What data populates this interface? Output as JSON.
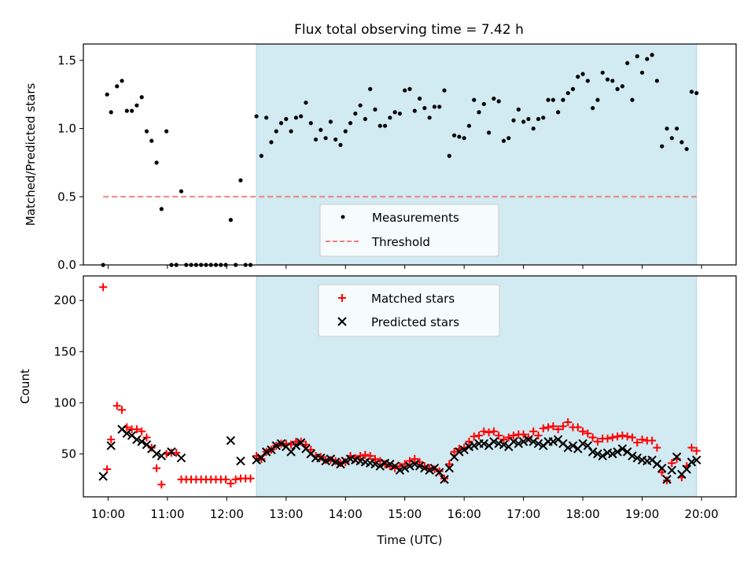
{
  "figure": {
    "title": "Flux total observing time = 7.42 h"
  },
  "chart_data": [
    {
      "type": "scatter",
      "panel": "top",
      "title": "Flux total observing time = 7.42 h",
      "xlabel": "",
      "ylabel": "Matched/Predicted stars",
      "x_unit": "time (UTC)",
      "xlim": [
        "09:35",
        "20:35"
      ],
      "ylim": [
        0,
        1.62
      ],
      "yticks": [
        0.0,
        0.5,
        1.0,
        1.5
      ],
      "ytick_labels": [
        "0.0",
        "0.5",
        "1.0",
        "1.5"
      ],
      "shaded_interval": {
        "start": "12:30",
        "end": "19:55",
        "color": "#add8e6"
      },
      "legend": {
        "placement": "lower center",
        "entries": [
          "Measurements",
          "Threshold"
        ]
      },
      "threshold": {
        "name": "Threshold",
        "y": 0.5,
        "x_start": "09:55",
        "x_end": "19:55",
        "color": "#f08080",
        "style": "dashed"
      },
      "series": [
        {
          "name": "Measurements",
          "marker": "dot",
          "color": "#000000",
          "x": [
            "09:55",
            "09:59",
            "10:03",
            "10:09",
            "10:14",
            "10:19",
            "10:24",
            "10:29",
            "10:34",
            "10:39",
            "10:44",
            "10:49",
            "10:54",
            "10:59",
            "11:04",
            "11:09",
            "11:14",
            "11:19",
            "11:24",
            "11:29",
            "11:34",
            "11:39",
            "11:44",
            "11:49",
            "11:54",
            "11:59",
            "12:04",
            "12:09",
            "12:14",
            "12:19",
            "12:24",
            "12:30",
            "12:35",
            "12:40",
            "12:45",
            "12:50",
            "12:55",
            "13:00",
            "13:05",
            "13:10",
            "13:15",
            "13:20",
            "13:25",
            "13:30",
            "13:35",
            "13:40",
            "13:45",
            "13:50",
            "13:55",
            "14:00",
            "14:05",
            "14:10",
            "14:15",
            "14:20",
            "14:25",
            "14:30",
            "14:35",
            "14:40",
            "14:45",
            "14:50",
            "14:55",
            "15:00",
            "15:05",
            "15:10",
            "15:15",
            "15:20",
            "15:25",
            "15:30",
            "15:35",
            "15:40",
            "15:45",
            "15:50",
            "15:55",
            "16:00",
            "16:05",
            "16:10",
            "16:15",
            "16:20",
            "16:25",
            "16:30",
            "16:35",
            "16:40",
            "16:45",
            "16:50",
            "16:55",
            "17:00",
            "17:05",
            "17:10",
            "17:15",
            "17:20",
            "17:25",
            "17:30",
            "17:35",
            "17:40",
            "17:45",
            "17:50",
            "17:55",
            "18:00",
            "18:05",
            "18:10",
            "18:15",
            "18:20",
            "18:25",
            "18:30",
            "18:35",
            "18:40",
            "18:45",
            "18:50",
            "18:55",
            "19:00",
            "19:05",
            "19:10",
            "19:15",
            "19:20",
            "19:25",
            "19:30",
            "19:35",
            "19:40",
            "19:45",
            "19:50",
            "19:55"
          ],
          "y": [
            0.0,
            1.25,
            1.12,
            1.31,
            1.35,
            1.13,
            1.13,
            1.17,
            1.23,
            0.98,
            0.91,
            0.75,
            0.41,
            0.98,
            0.0,
            0.0,
            0.54,
            0.0,
            0.0,
            0.0,
            0.0,
            0.0,
            0.0,
            0.0,
            0.0,
            0.0,
            0.33,
            0.0,
            0.62,
            0.0,
            0.0,
            1.09,
            0.8,
            1.08,
            0.9,
            0.98,
            1.04,
            1.07,
            0.98,
            1.08,
            1.09,
            1.19,
            1.04,
            0.92,
            0.99,
            0.93,
            1.05,
            0.92,
            0.88,
            0.98,
            1.04,
            1.11,
            1.17,
            1.07,
            1.29,
            1.14,
            1.02,
            1.02,
            1.08,
            1.12,
            1.11,
            1.28,
            1.29,
            1.13,
            1.22,
            1.15,
            1.08,
            1.16,
            1.16,
            1.28,
            0.8,
            0.95,
            0.94,
            0.93,
            1.02,
            1.21,
            1.12,
            1.18,
            0.97,
            1.22,
            1.2,
            0.91,
            0.93,
            1.06,
            1.14,
            1.05,
            1.07,
            1.0,
            1.07,
            1.08,
            1.21,
            1.21,
            1.12,
            1.21,
            1.26,
            1.29,
            1.38,
            1.4,
            1.35,
            1.15,
            1.21,
            1.41,
            1.36,
            1.35,
            1.29,
            1.31,
            1.48,
            1.21,
            1.53,
            1.41,
            1.51,
            1.54,
            1.35,
            0.87,
            1.0,
            0.93,
            1.0,
            0.9,
            0.85,
            1.27,
            1.26
          ]
        }
      ]
    },
    {
      "type": "scatter",
      "panel": "bottom",
      "title": "",
      "xlabel": "Time (UTC)",
      "ylabel": "Count",
      "xlim": [
        "09:35",
        "20:35"
      ],
      "ylim": [
        8,
        224
      ],
      "xticks": [
        "10:00",
        "11:00",
        "12:00",
        "13:00",
        "14:00",
        "15:00",
        "16:00",
        "17:00",
        "18:00",
        "19:00",
        "20:00"
      ],
      "yticks": [
        50,
        100,
        150,
        200
      ],
      "ytick_labels": [
        "50",
        "100",
        "150",
        "200"
      ],
      "shaded_interval": {
        "start": "12:30",
        "end": "19:55",
        "color": "#add8e6"
      },
      "legend": {
        "placement": "upper center",
        "entries": [
          "Matched stars",
          "Predicted stars"
        ]
      },
      "series": [
        {
          "name": "Matched stars",
          "marker": "plus",
          "color": "#ff0000",
          "x": [
            "09:55",
            "09:59",
            "10:03",
            "10:09",
            "10:14",
            "10:19",
            "10:24",
            "10:29",
            "10:34",
            "10:39",
            "10:44",
            "10:49",
            "10:54",
            "10:59",
            "11:04",
            "11:09",
            "11:14",
            "11:19",
            "11:24",
            "11:29",
            "11:34",
            "11:39",
            "11:44",
            "11:49",
            "11:54",
            "11:59",
            "12:04",
            "12:09",
            "12:14",
            "12:19",
            "12:24",
            "12:30",
            "12:35",
            "12:40",
            "12:45",
            "12:50",
            "12:55",
            "13:00",
            "13:05",
            "13:10",
            "13:15",
            "13:20",
            "13:25",
            "13:30",
            "13:35",
            "13:40",
            "13:45",
            "13:50",
            "13:55",
            "14:00",
            "14:05",
            "14:10",
            "14:15",
            "14:20",
            "14:25",
            "14:30",
            "14:35",
            "14:40",
            "14:45",
            "14:50",
            "14:55",
            "15:00",
            "15:05",
            "15:10",
            "15:15",
            "15:20",
            "15:25",
            "15:30",
            "15:35",
            "15:40",
            "15:45",
            "15:50",
            "15:55",
            "16:00",
            "16:05",
            "16:10",
            "16:15",
            "16:20",
            "16:25",
            "16:30",
            "16:35",
            "16:40",
            "16:45",
            "16:50",
            "16:55",
            "17:00",
            "17:05",
            "17:10",
            "17:15",
            "17:20",
            "17:25",
            "17:30",
            "17:35",
            "17:40",
            "17:45",
            "17:50",
            "17:55",
            "18:00",
            "18:05",
            "18:10",
            "18:15",
            "18:20",
            "18:25",
            "18:30",
            "18:35",
            "18:40",
            "18:45",
            "18:50",
            "18:55",
            "19:00",
            "19:05",
            "19:10",
            "19:15",
            "19:20",
            "19:25",
            "19:30",
            "19:35",
            "19:40",
            "19:45",
            "19:50",
            "19:55"
          ],
          "y": [
            213,
            35,
            64,
            97,
            93,
            76,
            74,
            74,
            72,
            66,
            56,
            36,
            20,
            50,
            51,
            51,
            25,
            25,
            25,
            25,
            25,
            25,
            25,
            25,
            25,
            25,
            21,
            25,
            26,
            26,
            26,
            48,
            45,
            52,
            54,
            58,
            60,
            60,
            59,
            62,
            62,
            59,
            54,
            48,
            47,
            44,
            44,
            43,
            41,
            42,
            48,
            46,
            48,
            49,
            48,
            45,
            43,
            40,
            38,
            36,
            38,
            40,
            43,
            45,
            42,
            38,
            36,
            35,
            33,
            26,
            40,
            52,
            55,
            56,
            62,
            67,
            68,
            72,
            71,
            72,
            68,
            64,
            66,
            68,
            69,
            69,
            66,
            72,
            68,
            75,
            76,
            77,
            74,
            77,
            81,
            76,
            76,
            72,
            70,
            66,
            62,
            65,
            65,
            66,
            67,
            68,
            67,
            66,
            61,
            64,
            63,
            63,
            56,
            32,
            24,
            41,
            45,
            27,
            38,
            56,
            53
          ]
        },
        {
          "name": "Predicted stars",
          "marker": "x",
          "color": "#000000",
          "x": [
            "09:55",
            "10:03",
            "10:14",
            "10:19",
            "10:24",
            "10:29",
            "10:34",
            "10:39",
            "10:44",
            "10:49",
            "10:54",
            "11:04",
            "11:14",
            "12:04",
            "12:14",
            "12:30",
            "12:35",
            "12:40",
            "12:45",
            "12:50",
            "12:55",
            "13:00",
            "13:05",
            "13:10",
            "13:15",
            "13:20",
            "13:25",
            "13:30",
            "13:35",
            "13:40",
            "13:45",
            "13:50",
            "13:55",
            "14:00",
            "14:05",
            "14:10",
            "14:15",
            "14:20",
            "14:25",
            "14:30",
            "14:35",
            "14:40",
            "14:45",
            "14:50",
            "14:55",
            "15:00",
            "15:05",
            "15:10",
            "15:15",
            "15:20",
            "15:25",
            "15:30",
            "15:35",
            "15:40",
            "15:45",
            "15:50",
            "15:55",
            "16:00",
            "16:05",
            "16:10",
            "16:15",
            "16:20",
            "16:25",
            "16:30",
            "16:35",
            "16:40",
            "16:45",
            "16:50",
            "16:55",
            "17:00",
            "17:05",
            "17:10",
            "17:15",
            "17:20",
            "17:25",
            "17:30",
            "17:35",
            "17:40",
            "17:45",
            "17:50",
            "17:55",
            "18:00",
            "18:05",
            "18:10",
            "18:15",
            "18:20",
            "18:25",
            "18:30",
            "18:35",
            "18:40",
            "18:45",
            "18:50",
            "18:55",
            "19:00",
            "19:05",
            "19:10",
            "19:15",
            "19:20",
            "19:25",
            "19:30",
            "19:35",
            "19:40",
            "19:45",
            "19:50",
            "19:55"
          ],
          "y": [
            28,
            58,
            74,
            70,
            68,
            64,
            62,
            59,
            55,
            50,
            48,
            52,
            46,
            63,
            43,
            44,
            46,
            52,
            54,
            58,
            60,
            57,
            52,
            58,
            61,
            55,
            50,
            46,
            46,
            43,
            45,
            42,
            40,
            43,
            45,
            44,
            43,
            42,
            41,
            40,
            38,
            41,
            40,
            38,
            34,
            36,
            38,
            40,
            38,
            36,
            34,
            36,
            32,
            25,
            36,
            47,
            52,
            54,
            57,
            58,
            60,
            60,
            58,
            62,
            60,
            59,
            57,
            62,
            60,
            62,
            64,
            62,
            60,
            58,
            62,
            62,
            64,
            60,
            56,
            58,
            55,
            60,
            58,
            52,
            50,
            48,
            51,
            50,
            52,
            55,
            52,
            48,
            46,
            44,
            43,
            44,
            40,
            36,
            25,
            34,
            47,
            30,
            35,
            42,
            44
          ]
        }
      ]
    }
  ]
}
